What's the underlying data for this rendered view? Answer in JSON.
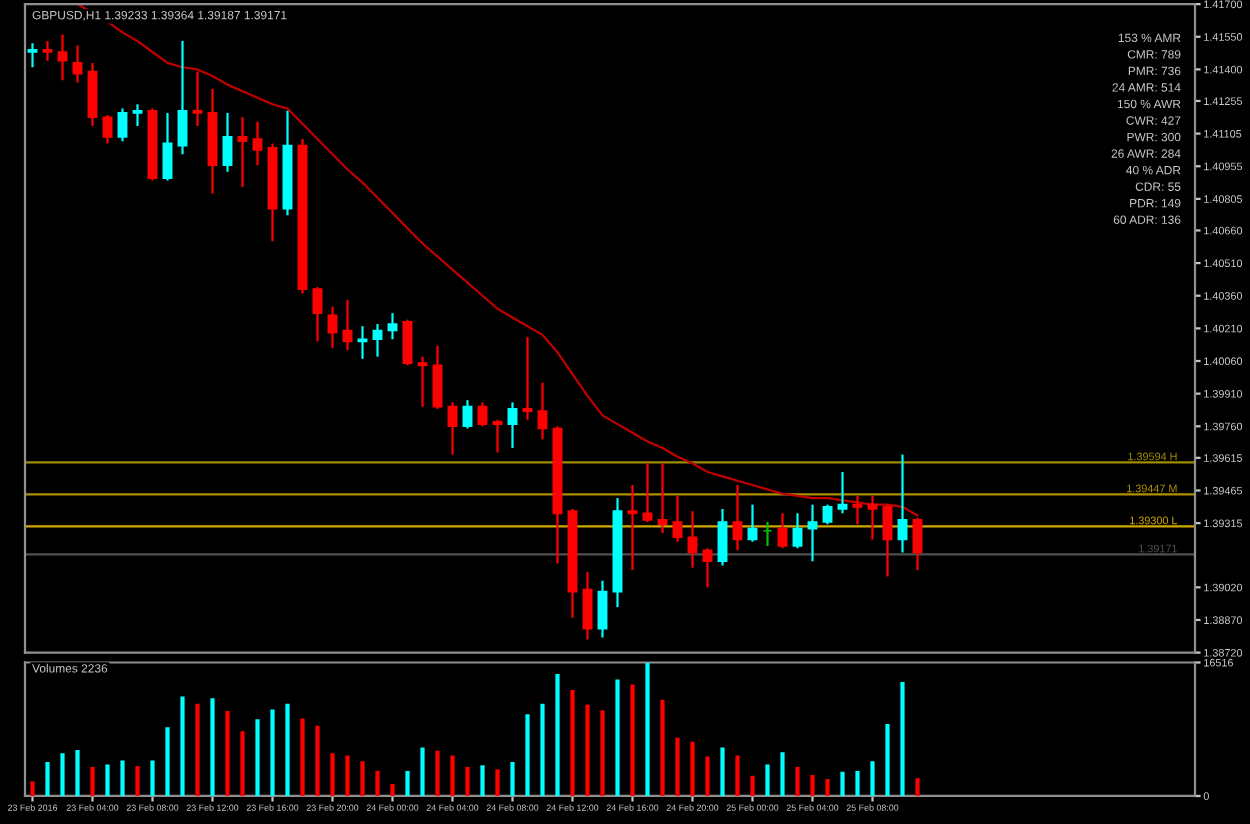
{
  "chart_data": [
    {
      "type": "candlestick",
      "title": "GBPUSD,H1 1.39233 1.39364 1.39187 1.39171",
      "categories": [
        null,
        null,
        null,
        null,
        null,
        null,
        null,
        null,
        null,
        null,
        null,
        null,
        null,
        null,
        null,
        null,
        null,
        null,
        null,
        null,
        null,
        null,
        null,
        null,
        null,
        null,
        null,
        null,
        null,
        null,
        null,
        null,
        null,
        null,
        null,
        null,
        null,
        null,
        null,
        null,
        null,
        null,
        null,
        null,
        null,
        null,
        null,
        null,
        null,
        null,
        null,
        null,
        null,
        null,
        null,
        null,
        null,
        null,
        null,
        null,
        null,
        null,
        null,
        null,
        null,
        null,
        null,
        null,
        null,
        null,
        null,
        null,
        null,
        null,
        null,
        null,
        null,
        null
      ],
      "ohlc": [
        [
          1.4148,
          1.4152,
          1.4141,
          1.4149
        ],
        [
          1.4149,
          1.4153,
          1.4144,
          1.4148
        ],
        [
          1.4148,
          1.4156,
          1.4135,
          1.4144
        ],
        [
          1.4143,
          1.4151,
          1.4134,
          1.4138
        ],
        [
          1.4139,
          1.4143,
          1.4114,
          1.4118
        ],
        [
          1.4118,
          1.4119,
          1.4106,
          1.4109
        ],
        [
          1.4109,
          1.4122,
          1.4107,
          1.412
        ],
        [
          1.412,
          1.4124,
          1.4114,
          1.4121
        ],
        [
          1.4121,
          1.4122,
          1.4089,
          1.409
        ],
        [
          1.409,
          1.412,
          1.4089,
          1.4106
        ],
        [
          1.4105,
          1.4153,
          1.4101,
          1.4121
        ],
        [
          1.4121,
          1.4139,
          1.4114,
          1.412
        ],
        [
          1.412,
          1.4131,
          1.4083,
          1.4096
        ],
        [
          1.4096,
          1.412,
          1.4093,
          1.4109
        ],
        [
          1.4109,
          1.4118,
          1.4086,
          1.4107
        ],
        [
          1.4108,
          1.4116,
          1.4096,
          1.4103
        ],
        [
          1.4104,
          1.4106,
          1.4061,
          1.4076
        ],
        [
          1.4076,
          1.4121,
          1.4073,
          1.4105
        ],
        [
          1.4105,
          1.4108,
          1.4037,
          1.4039
        ],
        [
          1.4039,
          1.404,
          1.4015,
          1.4028
        ],
        [
          1.4027,
          1.4031,
          1.4012,
          1.4019
        ],
        [
          1.402,
          1.4034,
          1.4011,
          1.4015
        ],
        [
          1.4015,
          1.4022,
          1.4007,
          1.4016
        ],
        [
          1.4016,
          1.4023,
          1.4008,
          1.402
        ],
        [
          1.402,
          1.4028,
          1.4016,
          1.4023
        ],
        [
          1.4024,
          1.4025,
          1.4004,
          1.4005
        ],
        [
          1.4005,
          1.4008,
          1.3985,
          1.4004
        ],
        [
          1.4004,
          1.4013,
          1.3984,
          1.3985
        ],
        [
          1.3985,
          1.3987,
          1.3963,
          1.3976
        ],
        [
          1.3976,
          1.3988,
          1.3975,
          1.3985
        ],
        [
          1.3985,
          1.3987,
          1.3976,
          1.3977
        ],
        [
          1.3978,
          1.3979,
          1.3964,
          1.3977
        ],
        [
          1.3977,
          1.3987,
          1.3966,
          1.3984
        ],
        [
          1.3984,
          1.4017,
          1.3979,
          1.3983
        ],
        [
          1.3983,
          1.3996,
          1.397,
          1.3975
        ],
        [
          1.3975,
          1.3976,
          1.3913,
          1.3936
        ],
        [
          1.3937,
          1.3938,
          1.3888,
          1.39
        ],
        [
          1.3901,
          1.3909,
          1.3878,
          1.3883
        ],
        [
          1.3883,
          1.3905,
          1.3879,
          1.39
        ],
        [
          1.39,
          1.3943,
          1.3893,
          1.3937
        ],
        [
          1.3937,
          1.3949,
          1.391,
          1.3936
        ],
        [
          1.3936,
          1.3959,
          1.3932,
          1.3933
        ],
        [
          1.3933,
          1.3959,
          1.3927,
          1.3931
        ],
        [
          1.3932,
          1.3944,
          1.3923,
          1.3925
        ],
        [
          1.3925,
          1.3937,
          1.3911,
          1.3918
        ],
        [
          1.3919,
          1.392,
          1.3902,
          1.3914
        ],
        [
          1.3914,
          1.3938,
          1.3912,
          1.3932
        ],
        [
          1.3932,
          1.3949,
          1.3919,
          1.3924
        ],
        [
          1.3924,
          1.394,
          1.3923,
          1.3929
        ],
        [
          1.3928,
          1.3932,
          1.3921,
          1.3928
        ],
        [
          1.3929,
          1.3936,
          1.392,
          1.3921
        ],
        [
          1.3921,
          1.3936,
          1.392,
          1.3929
        ],
        [
          1.3929,
          1.394,
          1.3914,
          1.3932
        ],
        [
          1.3932,
          1.394,
          1.3931,
          1.3939
        ],
        [
          1.3938,
          1.3955,
          1.3936,
          1.394
        ],
        [
          1.394,
          1.3944,
          1.3931,
          1.3939
        ],
        [
          1.394,
          1.3944,
          1.3924,
          1.3938
        ],
        [
          1.3939,
          1.394,
          1.3907,
          1.3924
        ],
        [
          1.3924,
          1.3963,
          1.3918,
          1.3933
        ],
        [
          1.3933,
          1.3934,
          1.391,
          1.3918
        ],
        null,
        null,
        null,
        null,
        null,
        null,
        null,
        null,
        null,
        null,
        null,
        null,
        null,
        null,
        null,
        null,
        null,
        null
      ],
      "colors": [
        "#00ffff",
        "#ff0000",
        "#ff0000",
        "#ff0000",
        "#ff0000",
        "#ff0000",
        "#00ffff",
        "#00ffff",
        "#ff0000",
        "#00ffff",
        "#00ffff",
        "#ff0000",
        "#ff0000",
        "#00ffff",
        "#ff0000",
        "#ff0000",
        "#ff0000",
        "#00ffff",
        "#ff0000",
        "#ff0000",
        "#ff0000",
        "#ff0000",
        "#00ffff",
        "#00ffff",
        "#00ffff",
        "#ff0000",
        "#ff0000",
        "#ff0000",
        "#ff0000",
        "#00ffff",
        "#ff0000",
        "#ff0000",
        "#00ffff",
        "#ff0000",
        "#ff0000",
        "#ff0000",
        "#ff0000",
        "#ff0000",
        "#00ffff",
        "#00ffff",
        "#ff0000",
        "#ff0000",
        "#ff0000",
        "#ff0000",
        "#ff0000",
        "#ff0000",
        "#00ffff",
        "#ff0000",
        "#00ffff",
        "#00c000",
        "#ff0000",
        "#00ffff",
        "#00ffff",
        "#00ffff",
        "#00ffff",
        "#ff0000",
        "#ff0000",
        "#ff0000",
        "#00ffff",
        "#ff0000",
        null,
        null,
        null,
        null,
        null,
        null,
        null,
        null,
        null,
        null,
        null,
        null,
        null,
        null,
        null,
        null,
        null,
        null
      ],
      "series": [
        {
          "type": "line",
          "color": "#c00000",
          "values": [
            null,
            null,
            null,
            1.417,
            1.4166,
            1.4162,
            1.4157,
            1.4153,
            1.4148,
            1.4143,
            1.4141,
            1.414,
            1.4137,
            1.4133,
            1.413,
            1.4127,
            1.4124,
            1.4122,
            1.4115,
            1.4108,
            1.4101,
            1.4094,
            1.4088,
            1.4081,
            1.4074,
            1.4067,
            1.406,
            1.4054,
            1.4048,
            1.4042,
            1.4036,
            1.403,
            1.4026,
            1.4022,
            1.4018,
            1.401,
            1.4,
            1.399,
            1.3981,
            1.3977,
            1.3973,
            1.3969,
            1.3966,
            1.3962,
            1.3959,
            1.3955,
            1.3953,
            1.3951,
            1.3949,
            1.3947,
            1.3945,
            1.3944,
            1.3943,
            1.3943,
            1.3942,
            1.3941,
            1.394,
            1.394,
            1.3939,
            1.3935,
            null,
            null,
            null,
            null,
            null,
            null,
            null,
            null,
            null,
            null,
            null,
            null,
            null,
            null,
            null,
            null,
            null,
            null
          ]
        }
      ],
      "ylim": [
        1.3872,
        1.417
      ],
      "yticks": [
        {
          "value": 1.417,
          "label": "1.41700"
        },
        {
          "value": 1.4155,
          "label": "1.41550"
        },
        {
          "value": 1.414,
          "label": "1.41400"
        },
        {
          "value": 1.41255,
          "label": "1.41255"
        },
        {
          "value": 1.41105,
          "label": "1.41105"
        },
        {
          "value": 1.40955,
          "label": "1.40955"
        },
        {
          "value": 1.40805,
          "label": "1.40805"
        },
        {
          "value": 1.4066,
          "label": "1.40660"
        },
        {
          "value": 1.4051,
          "label": "1.40510"
        },
        {
          "value": 1.4036,
          "label": "1.40360"
        },
        {
          "value": 1.4021,
          "label": "1.40210"
        },
        {
          "value": 1.4006,
          "label": "1.40060"
        },
        {
          "value": 1.3991,
          "label": "1.39910"
        },
        {
          "value": 1.3976,
          "label": "1.39760"
        },
        {
          "value": 1.39615,
          "label": "1.39615"
        },
        {
          "value": 1.39465,
          "label": "1.39465"
        },
        {
          "value": 1.39315,
          "label": "1.39315"
        },
        {
          "value": 1.3902,
          "label": "1.39020"
        },
        {
          "value": 1.3887,
          "label": "1.38870"
        },
        {
          "value": 1.3872,
          "label": "1.38720"
        }
      ],
      "ref_lines": [
        {
          "axis": "y",
          "value": 1.39594,
          "label": "1.39594 H",
          "color": "#a08c00"
        },
        {
          "axis": "y",
          "value": 1.39447,
          "label": "1.39447 M",
          "color": "#b09000"
        },
        {
          "axis": "y",
          "value": 1.393,
          "label": "1.39300 L",
          "color": "#d0a800"
        },
        {
          "axis": "y",
          "value": 1.39171,
          "label": "1.39171",
          "color": "#505050"
        }
      ],
      "annotations": [
        "153 % AMR",
        "CMR: 789",
        "PMR: 736",
        "24 AMR: 514",
        "150 % AWR",
        "CWR: 427",
        "PWR: 300",
        "26 AWR: 284",
        "40 % ADR",
        "CDR: 55",
        "PDR: 149",
        "60 ADR: 136"
      ],
      "tick_labels": "y",
      "grid": false,
      "legend": false
    },
    {
      "type": "bar",
      "title": "Volumes 2236",
      "categories": [
        "23 Feb 2016",
        null,
        null,
        null,
        "23 Feb 04:00",
        null,
        null,
        null,
        "23 Feb 08:00",
        null,
        null,
        null,
        "23 Feb 12:00",
        null,
        null,
        null,
        "23 Feb 16:00",
        null,
        null,
        null,
        "23 Feb 20:00",
        null,
        null,
        null,
        "24 Feb 00:00",
        null,
        null,
        null,
        "24 Feb 04:00",
        null,
        null,
        null,
        "24 Feb 08:00",
        null,
        null,
        null,
        "24 Feb 12:00",
        null,
        null,
        null,
        "24 Feb 16:00",
        null,
        null,
        null,
        "24 Feb 20:00",
        null,
        null,
        null,
        "25 Feb 00:00",
        null,
        null,
        null,
        "25 Feb 04:00",
        null,
        null,
        null,
        "25 Feb 08:00",
        null,
        null,
        null,
        null,
        null,
        null,
        null,
        null,
        null,
        null,
        null,
        null,
        null,
        null,
        null,
        null,
        null,
        null,
        null,
        null,
        null
      ],
      "values": [
        1800,
        4200,
        5300,
        5700,
        3600,
        3900,
        4400,
        3700,
        4400,
        8500,
        12300,
        11400,
        12100,
        10500,
        8000,
        9500,
        10700,
        11400,
        9600,
        8700,
        5300,
        5000,
        4300,
        3100,
        1500,
        3100,
        6000,
        5600,
        5000,
        3600,
        3800,
        3300,
        4200,
        10100,
        11400,
        15100,
        13100,
        11300,
        10600,
        14400,
        13800,
        16500,
        11900,
        7200,
        6700,
        4900,
        6000,
        5000,
        2500,
        3900,
        5400,
        3600,
        2600,
        2100,
        3000,
        3100,
        4300,
        8900,
        14100,
        2200,
        null,
        null,
        null,
        null,
        null,
        null,
        null,
        null,
        null,
        null,
        null,
        null,
        null,
        null,
        null,
        null,
        null,
        null
      ],
      "colors": [
        "#ff0000",
        "#00ffff",
        "#00ffff",
        "#00ffff",
        "#ff0000",
        "#00ffff",
        "#00ffff",
        "#ff0000",
        "#00ffff",
        "#00ffff",
        "#00ffff",
        "#ff0000",
        "#00ffff",
        "#ff0000",
        "#ff0000",
        "#00ffff",
        "#00ffff",
        "#00ffff",
        "#ff0000",
        "#ff0000",
        "#ff0000",
        "#ff0000",
        "#ff0000",
        "#ff0000",
        "#ff0000",
        "#00ffff",
        "#00ffff",
        "#ff0000",
        "#ff0000",
        "#ff0000",
        "#00ffff",
        "#ff0000",
        "#00ffff",
        "#00ffff",
        "#00ffff",
        "#00ffff",
        "#ff0000",
        "#ff0000",
        "#ff0000",
        "#00ffff",
        "#ff0000",
        "#00ffff",
        "#ff0000",
        "#ff0000",
        "#ff0000",
        "#ff0000",
        "#00ffff",
        "#ff0000",
        "#ff0000",
        "#00ffff",
        "#00ffff",
        "#ff0000",
        "#ff0000",
        "#ff0000",
        "#00ffff",
        "#00ffff",
        "#00ffff",
        "#00ffff",
        "#00ffff",
        "#ff0000",
        null,
        null,
        null,
        null,
        null,
        null,
        null,
        null,
        null,
        null,
        null,
        null,
        null,
        null,
        null,
        null,
        null,
        null
      ],
      "ylim": [
        0,
        16516
      ],
      "yticks": [
        0,
        16516
      ],
      "grid": false,
      "legend": false
    }
  ]
}
